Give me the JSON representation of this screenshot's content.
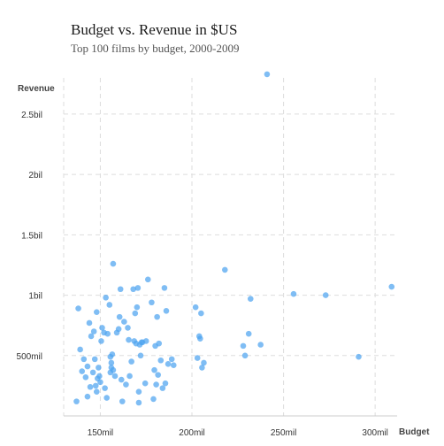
{
  "chart_data": {
    "type": "scatter",
    "title": "Budget vs. Revenue in $US",
    "subtitle": "Top 100 films by budget, 2000-2009",
    "xlabel": "Budget",
    "ylabel": "Revenue",
    "xlim": [
      130000000,
      312000000
    ],
    "ylim": [
      0,
      2800000000
    ],
    "x_ticks": [
      {
        "value": 150000000,
        "label": "150mil"
      },
      {
        "value": 200000000,
        "label": "200mil"
      },
      {
        "value": 250000000,
        "label": "250mil"
      },
      {
        "value": 300000000,
        "label": "300mil"
      }
    ],
    "y_ticks": [
      {
        "value": 500000000,
        "label": "500mil"
      },
      {
        "value": 1000000000,
        "label": "1bil"
      },
      {
        "value": 1500000000,
        "label": "1.5bil"
      },
      {
        "value": 2000000000,
        "label": "2bil"
      },
      {
        "value": 2500000000,
        "label": "2.5bil"
      }
    ],
    "grid": true,
    "point_color": "#4da3f0",
    "points": [
      [
        137000000,
        120000000
      ],
      [
        138000000,
        890000000
      ],
      [
        139000000,
        550000000
      ],
      [
        140000000,
        370000000
      ],
      [
        141000000,
        470000000
      ],
      [
        142000000,
        320000000
      ],
      [
        143000000,
        160000000
      ],
      [
        143000000,
        410000000
      ],
      [
        144000000,
        770000000
      ],
      [
        144500000,
        240000000
      ],
      [
        145000000,
        660000000
      ],
      [
        146000000,
        360000000
      ],
      [
        146500000,
        700000000
      ],
      [
        147000000,
        470000000
      ],
      [
        147500000,
        250000000
      ],
      [
        148000000,
        860000000
      ],
      [
        148000000,
        200000000
      ],
      [
        148500000,
        310000000
      ],
      [
        149000000,
        400000000
      ],
      [
        149500000,
        330000000
      ],
      [
        150000000,
        280000000
      ],
      [
        150500000,
        620000000
      ],
      [
        151000000,
        730000000
      ],
      [
        152000000,
        690000000
      ],
      [
        152500000,
        230000000
      ],
      [
        153000000,
        980000000
      ],
      [
        153500000,
        150000000
      ],
      [
        154000000,
        680000000
      ],
      [
        155000000,
        920000000
      ],
      [
        155500000,
        360000000
      ],
      [
        155500000,
        490000000
      ],
      [
        156000000,
        440000000
      ],
      [
        156000000,
        400000000
      ],
      [
        156500000,
        510000000
      ],
      [
        157000000,
        380000000
      ],
      [
        157000000,
        1260000000
      ],
      [
        158000000,
        330000000
      ],
      [
        159000000,
        690000000
      ],
      [
        160000000,
        720000000
      ],
      [
        160500000,
        820000000
      ],
      [
        161000000,
        1050000000
      ],
      [
        161500000,
        300000000
      ],
      [
        162000000,
        120000000
      ],
      [
        163000000,
        780000000
      ],
      [
        164000000,
        260000000
      ],
      [
        165000000,
        730000000
      ],
      [
        165500000,
        630000000
      ],
      [
        166000000,
        330000000
      ],
      [
        167000000,
        450000000
      ],
      [
        168000000,
        1050000000
      ],
      [
        168500000,
        620000000
      ],
      [
        169000000,
        850000000
      ],
      [
        169500000,
        600000000
      ],
      [
        170000000,
        900000000
      ],
      [
        170500000,
        1060000000
      ],
      [
        171000000,
        200000000
      ],
      [
        171000000,
        110000000
      ],
      [
        171500000,
        590000000
      ],
      [
        172000000,
        500000000
      ],
      [
        172500000,
        610000000
      ],
      [
        173000000,
        610000000
      ],
      [
        174500000,
        270000000
      ],
      [
        175000000,
        620000000
      ],
      [
        176000000,
        1130000000
      ],
      [
        178000000,
        940000000
      ],
      [
        179000000,
        140000000
      ],
      [
        179500000,
        380000000
      ],
      [
        180000000,
        580000000
      ],
      [
        180500000,
        260000000
      ],
      [
        181000000,
        820000000
      ],
      [
        181500000,
        340000000
      ],
      [
        182000000,
        600000000
      ],
      [
        183000000,
        460000000
      ],
      [
        184000000,
        230000000
      ],
      [
        185000000,
        1060000000
      ],
      [
        185500000,
        270000000
      ],
      [
        186000000,
        870000000
      ],
      [
        187000000,
        430000000
      ],
      [
        189000000,
        470000000
      ],
      [
        190000000,
        420000000
      ],
      [
        202000000,
        900000000
      ],
      [
        203000000,
        480000000
      ],
      [
        204000000,
        660000000
      ],
      [
        204500000,
        640000000
      ],
      [
        205000000,
        850000000
      ],
      [
        205500000,
        400000000
      ],
      [
        206500000,
        440000000
      ],
      [
        218000000,
        1210000000
      ],
      [
        228000000,
        580000000
      ],
      [
        229000000,
        500000000
      ],
      [
        231000000,
        680000000
      ],
      [
        232000000,
        970000000
      ],
      [
        237500000,
        590000000
      ],
      [
        241000000,
        2830000000
      ],
      [
        255500000,
        1010000000
      ],
      [
        273000000,
        1000000000
      ],
      [
        291000000,
        490000000
      ],
      [
        309000000,
        1070000000
      ]
    ]
  }
}
